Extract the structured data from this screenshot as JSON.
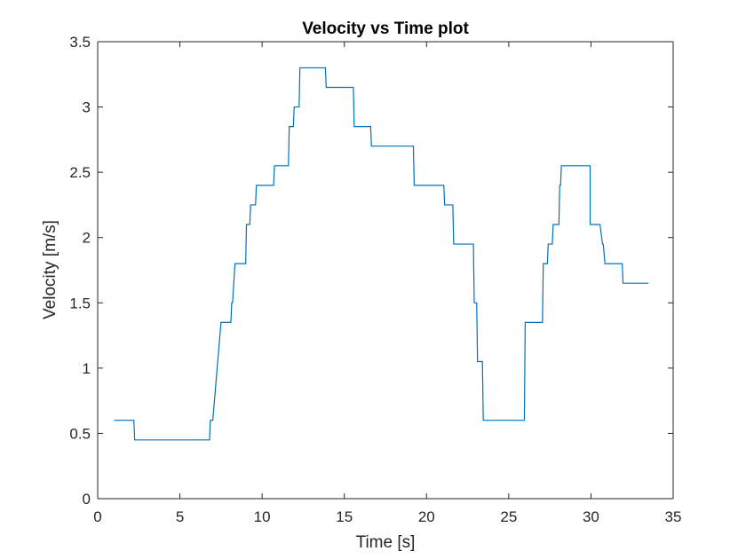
{
  "chart_data": {
    "type": "line",
    "title": "Velocity vs Time plot",
    "xlabel": "Time [s]",
    "ylabel": "Velocity [m/s]",
    "xlim": [
      0,
      35
    ],
    "ylim": [
      0,
      3.5
    ],
    "xticks": [
      0,
      5,
      10,
      15,
      20,
      25,
      30,
      35
    ],
    "yticks": [
      0,
      0.5,
      1,
      1.5,
      2,
      2.5,
      3,
      3.5
    ],
    "xtick_labels": [
      "0",
      "5",
      "10",
      "15",
      "20",
      "25",
      "30",
      "35"
    ],
    "ytick_labels": [
      "0",
      "0.5",
      "1",
      "1.5",
      "2",
      "2.5",
      "3",
      "3.5"
    ],
    "grid": false,
    "box": true,
    "series": [
      {
        "name": "velocity",
        "color": "#0072BD",
        "x": [
          1.0,
          2.2,
          2.25,
          6.8,
          6.85,
          6.95,
          7.0,
          7.5,
          7.55,
          8.1,
          8.15,
          8.2,
          8.35,
          8.4,
          9.0,
          9.05,
          9.25,
          9.3,
          9.6,
          9.65,
          9.9,
          9.95,
          10.7,
          10.75,
          11.6,
          11.65,
          11.9,
          11.95,
          12.25,
          12.3,
          13.85,
          13.9,
          15.55,
          15.6,
          16.1,
          16.15,
          16.6,
          16.65,
          18.75,
          18.8,
          19.2,
          19.25,
          21.05,
          21.1,
          21.35,
          21.4,
          21.6,
          21.65,
          22.15,
          22.2,
          22.85,
          22.9,
          23.05,
          23.1,
          23.4,
          23.45,
          25.2,
          25.25,
          25.95,
          26.0,
          26.35,
          26.4,
          27.05,
          27.1,
          27.35,
          27.4,
          27.65,
          27.7,
          28.05,
          28.1,
          28.15,
          28.2,
          29.4,
          29.45,
          29.95,
          29.95,
          30.5,
          30.55,
          30.7,
          30.75,
          30.85,
          30.9,
          31.9,
          31.95,
          33.5
        ],
        "y": [
          0.6,
          0.6,
          0.45,
          0.45,
          0.6,
          0.6,
          0.6,
          1.35,
          1.35,
          1.35,
          1.5,
          1.5,
          1.8,
          1.8,
          1.8,
          2.1,
          2.1,
          2.25,
          2.25,
          2.4,
          2.4,
          2.4,
          2.4,
          2.55,
          2.55,
          2.85,
          2.85,
          3.0,
          3.0,
          3.3,
          3.3,
          3.15,
          3.15,
          2.85,
          2.85,
          2.85,
          2.85,
          2.7,
          2.7,
          2.7,
          2.7,
          2.4,
          2.4,
          2.25,
          2.25,
          2.25,
          2.25,
          1.95,
          1.95,
          1.95,
          1.95,
          1.5,
          1.5,
          1.05,
          1.05,
          0.6,
          0.6,
          0.6,
          0.6,
          1.35,
          1.35,
          1.35,
          1.35,
          1.8,
          1.8,
          1.95,
          1.95,
          2.1,
          2.1,
          2.4,
          2.4,
          2.55,
          2.55,
          2.55,
          2.55,
          2.1,
          2.1,
          2.1,
          1.95,
          1.95,
          1.8,
          1.8,
          1.8,
          1.65,
          1.65
        ]
      }
    ]
  }
}
